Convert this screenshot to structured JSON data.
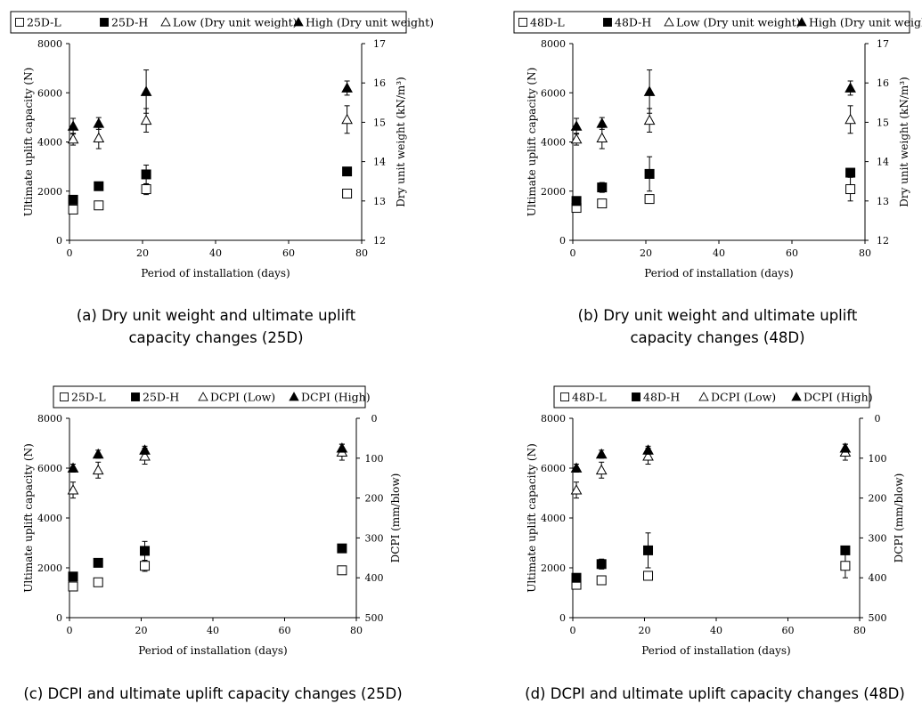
{
  "captions": {
    "a_line1": "(a)  Dry unit weight and ultimate uplift",
    "a_line2": "capacity changes (25D)",
    "b_line1": "(b)  Dry unit weight and ultimate uplift",
    "b_line2": "capacity changes (48D)",
    "c": "(c)  DCPI and ultimate uplift capacity changes (25D)",
    "d": "(d)  DCPI and ultimate uplift capacity changes (48D)"
  },
  "chart_data": [
    {
      "id": "a",
      "type": "scatter",
      "xlabel": "Period of installation (days)",
      "ylabel": "Ultimate uplift capacity (N)",
      "y2label": "Dry unit weight (kN/m³)",
      "xlim": [
        0,
        80
      ],
      "xticks": [
        0,
        20,
        40,
        60,
        80
      ],
      "ylim": [
        0,
        8000
      ],
      "yticks": [
        0,
        2000,
        4000,
        6000,
        8000
      ],
      "y2lim": [
        12,
        17
      ],
      "y2ticks": [
        12,
        13,
        14,
        15,
        16,
        17
      ],
      "y2_reversed": false,
      "legend_position": "top",
      "series": [
        {
          "name": "25D-L",
          "marker": "square-open",
          "axis": "left",
          "x": [
            1,
            8,
            21,
            76
          ],
          "y": [
            1250,
            1420,
            2080,
            1900
          ],
          "err": [
            60,
            60,
            220,
            60
          ]
        },
        {
          "name": "25D-H",
          "marker": "square-filled",
          "axis": "left",
          "x": [
            1,
            8,
            21,
            76
          ],
          "y": [
            1650,
            2200,
            2680,
            2800
          ],
          "err": [
            60,
            60,
            380,
            60
          ]
        },
        {
          "name": "Low (Dry unit weight)",
          "marker": "triangle-open",
          "axis": "right",
          "x": [
            1,
            8,
            21,
            76
          ],
          "y": [
            14.57,
            14.6,
            15.05,
            15.07
          ],
          "err": [
            0.15,
            0.27,
            0.3,
            0.35
          ]
        },
        {
          "name": "High (Dry unit weight)",
          "marker": "triangle-filled",
          "axis": "right",
          "x": [
            1,
            8,
            21,
            76
          ],
          "y": [
            14.9,
            14.97,
            15.78,
            15.87
          ],
          "err": [
            0.2,
            0.15,
            0.55,
            0.18
          ]
        }
      ]
    },
    {
      "id": "b",
      "type": "scatter",
      "xlabel": "Period of installation (days)",
      "ylabel": "Ultimate uplift capacity (N)",
      "y2label": "Dry unit weight (kN/m³)",
      "xlim": [
        0,
        80
      ],
      "xticks": [
        0,
        20,
        40,
        60,
        80
      ],
      "ylim": [
        0,
        8000
      ],
      "yticks": [
        0,
        2000,
        4000,
        6000,
        8000
      ],
      "y2lim": [
        12,
        17
      ],
      "y2ticks": [
        12,
        13,
        14,
        15,
        16,
        17
      ],
      "y2_reversed": false,
      "legend_position": "top",
      "series": [
        {
          "name": "48D-L",
          "marker": "square-open",
          "axis": "left",
          "x": [
            1,
            8,
            21,
            76
          ],
          "y": [
            1320,
            1500,
            1680,
            2080
          ],
          "err": [
            60,
            60,
            60,
            480
          ]
        },
        {
          "name": "48D-H",
          "marker": "square-filled",
          "axis": "left",
          "x": [
            1,
            8,
            21,
            76
          ],
          "y": [
            1600,
            2150,
            2700,
            2750
          ],
          "err": [
            60,
            200,
            700,
            140
          ]
        },
        {
          "name": "Low (Dry unit weight)",
          "marker": "triangle-open",
          "axis": "right",
          "x": [
            1,
            8,
            21,
            76
          ],
          "y": [
            14.57,
            14.6,
            15.05,
            15.07
          ],
          "err": [
            0.15,
            0.27,
            0.3,
            0.35
          ]
        },
        {
          "name": "High (Dry unit weight)",
          "marker": "triangle-filled",
          "axis": "right",
          "x": [
            1,
            8,
            21,
            76
          ],
          "y": [
            14.9,
            14.97,
            15.78,
            15.87
          ],
          "err": [
            0.2,
            0.15,
            0.55,
            0.18
          ]
        }
      ]
    },
    {
      "id": "c",
      "type": "scatter",
      "xlabel": "Period of installation (days)",
      "ylabel": "Ultimate uplift capacity (N)",
      "y2label": "DCPI (mm/blow)",
      "xlim": [
        0,
        80
      ],
      "xticks": [
        0,
        20,
        40,
        60,
        80
      ],
      "ylim": [
        0,
        8000
      ],
      "yticks": [
        0,
        2000,
        4000,
        6000,
        8000
      ],
      "y2lim": [
        0,
        500
      ],
      "y2ticks": [
        0,
        100,
        200,
        300,
        400,
        500
      ],
      "y2_reversed": true,
      "legend_position": "top",
      "series": [
        {
          "name": "25D-L",
          "marker": "square-open",
          "axis": "left",
          "x": [
            1,
            8,
            21,
            76
          ],
          "y": [
            1250,
            1420,
            2080,
            1900
          ],
          "err": [
            60,
            60,
            220,
            60
          ]
        },
        {
          "name": "25D-H",
          "marker": "square-filled",
          "axis": "left",
          "x": [
            1,
            8,
            21,
            76
          ],
          "y": [
            1650,
            2200,
            2680,
            2780
          ],
          "err": [
            60,
            60,
            380,
            60
          ]
        },
        {
          "name": "DCPI (Low)",
          "marker": "triangle-open",
          "axis": "right",
          "x": [
            1,
            8,
            21,
            76
          ],
          "y": [
            180,
            130,
            95,
            85
          ],
          "err": [
            20,
            20,
            20,
            20
          ]
        },
        {
          "name": "DCPI (High)",
          "marker": "triangle-filled",
          "axis": "right",
          "x": [
            1,
            8,
            21,
            76
          ],
          "y": [
            125,
            90,
            80,
            75
          ],
          "err": [
            10,
            10,
            10,
            10
          ]
        }
      ]
    },
    {
      "id": "d",
      "type": "scatter",
      "xlabel": "Period of installation (days)",
      "ylabel": "Ultimate uplift capacity (N)",
      "y2label": "DCPI (mm/blow)",
      "xlim": [
        0,
        80
      ],
      "xticks": [
        0,
        20,
        40,
        60,
        80
      ],
      "ylim": [
        0,
        8000
      ],
      "yticks": [
        0,
        2000,
        4000,
        6000,
        8000
      ],
      "y2lim": [
        0,
        500
      ],
      "y2ticks": [
        0,
        100,
        200,
        300,
        400,
        500
      ],
      "y2_reversed": true,
      "legend_position": "top",
      "series": [
        {
          "name": "48D-L",
          "marker": "square-open",
          "axis": "left",
          "x": [
            1,
            8,
            21,
            76
          ],
          "y": [
            1320,
            1500,
            1680,
            2080
          ],
          "err": [
            60,
            60,
            60,
            480
          ]
        },
        {
          "name": "48D-H",
          "marker": "square-filled",
          "axis": "left",
          "x": [
            1,
            8,
            21,
            76
          ],
          "y": [
            1600,
            2150,
            2700,
            2700
          ],
          "err": [
            60,
            200,
            700,
            140
          ]
        },
        {
          "name": "DCPI (Low)",
          "marker": "triangle-open",
          "axis": "right",
          "x": [
            1,
            8,
            21,
            76
          ],
          "y": [
            180,
            130,
            95,
            85
          ],
          "err": [
            20,
            20,
            20,
            20
          ]
        },
        {
          "name": "DCPI (High)",
          "marker": "triangle-filled",
          "axis": "right",
          "x": [
            1,
            8,
            21,
            76
          ],
          "y": [
            125,
            90,
            80,
            75
          ],
          "err": [
            10,
            10,
            10,
            10
          ]
        }
      ]
    }
  ]
}
